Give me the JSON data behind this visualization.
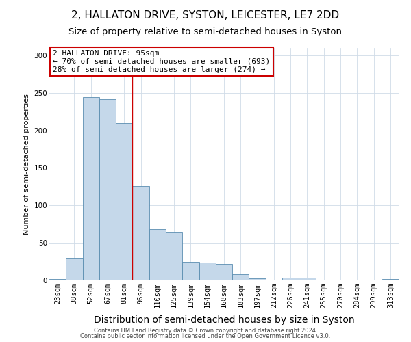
{
  "title": "2, HALLATON DRIVE, SYSTON, LEICESTER, LE7 2DD",
  "subtitle": "Size of property relative to semi-detached houses in Syston",
  "xlabel": "Distribution of semi-detached houses by size in Syston",
  "ylabel": "Number of semi-detached properties",
  "footer1": "Contains HM Land Registry data © Crown copyright and database right 2024.",
  "footer2": "Contains public sector information licensed under the Open Government Licence v3.0.",
  "categories": [
    "23sqm",
    "38sqm",
    "52sqm",
    "67sqm",
    "81sqm",
    "96sqm",
    "110sqm",
    "125sqm",
    "139sqm",
    "154sqm",
    "168sqm",
    "183sqm",
    "197sqm",
    "212sqm",
    "226sqm",
    "241sqm",
    "255sqm",
    "270sqm",
    "284sqm",
    "299sqm",
    "313sqm"
  ],
  "values": [
    2,
    30,
    244,
    242,
    210,
    126,
    68,
    65,
    25,
    24,
    22,
    8,
    3,
    0,
    4,
    4,
    1,
    0,
    0,
    0,
    2
  ],
  "bar_color": "#c5d8ea",
  "bar_edge_color": "#5a8db0",
  "red_line_x": 4.5,
  "ylim": [
    0,
    310
  ],
  "yticks": [
    0,
    50,
    100,
    150,
    200,
    250,
    300
  ],
  "annotation_title": "2 HALLATON DRIVE: 95sqm",
  "annotation_line1": "← 70% of semi-detached houses are smaller (693)",
  "annotation_line2": "28% of semi-detached houses are larger (274) →",
  "annotation_box_color": "#ffffff",
  "annotation_box_edge_color": "#cc0000",
  "title_fontsize": 11,
  "subtitle_fontsize": 9.5,
  "xlabel_fontsize": 10,
  "ylabel_fontsize": 8,
  "tick_fontsize": 7.5,
  "annotation_fontsize": 8,
  "footer_fontsize": 6,
  "background_color": "#ffffff",
  "grid_color": "#d0dce8"
}
